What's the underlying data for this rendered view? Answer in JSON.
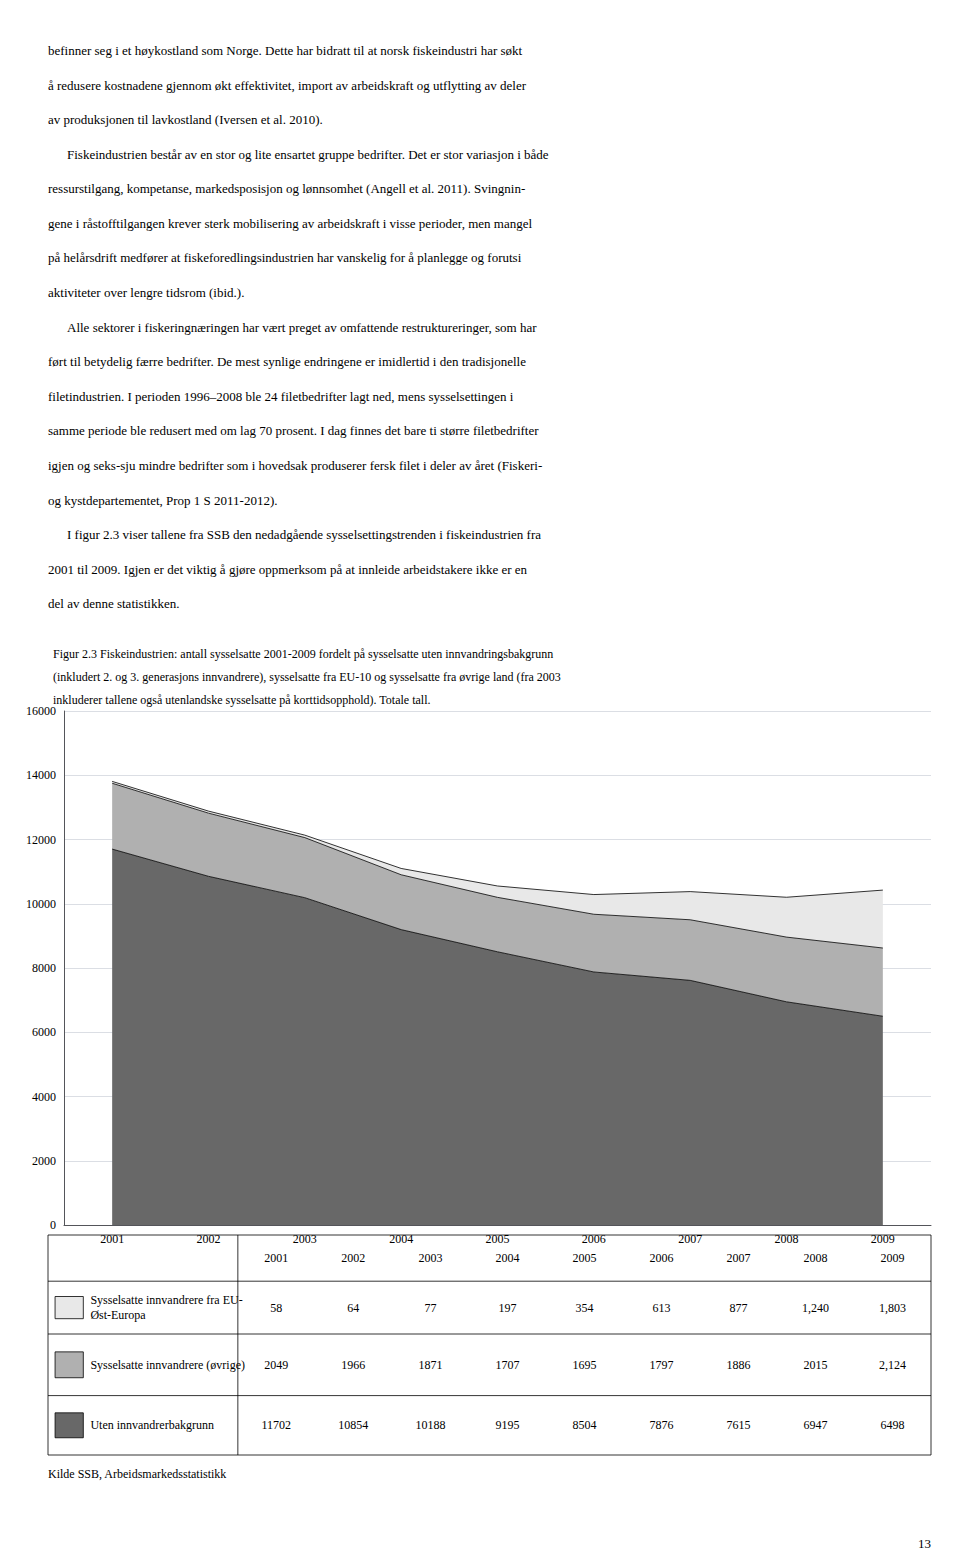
{
  "chart_data": {
    "type": "area",
    "stacked": true,
    "title": "Figur 2.3 Fiskeindustrien: antall sysselsatte 2001-2009 fordelt på sysselsatte uten innvandringsbakgrunn\n(inkludert 2. og 3. generasjons innvandrere), sysselsatte fra EU-10 og sysselsatte fra øvrige land (fra 2003\ninkluderer tallene også utenlandske sysselsatte på korttidsopphold). Totale tall.",
    "categories": [
      "2001",
      "2002",
      "2003",
      "2004",
      "2005",
      "2006",
      "2007",
      "2008",
      "2009"
    ],
    "series": [
      {
        "name": "Uten innvandrerbakgrunn",
        "color": "#686868",
        "values": [
          11702,
          10854,
          10188,
          9195,
          8504,
          7876,
          7615,
          6947,
          6498
        ],
        "value_labels": [
          "11702",
          "10854",
          "10188",
          "9195",
          "8504",
          "7876",
          "7615",
          "6947",
          "6498"
        ]
      },
      {
        "name": "Sysselsatte innvandrere (øvrige)",
        "color": "#b0b0b0",
        "values": [
          2049,
          1966,
          1871,
          1707,
          1695,
          1797,
          1886,
          2015,
          2124
        ],
        "value_labels": [
          "2049",
          "1966",
          "1871",
          "1707",
          "1695",
          "1797",
          "1886",
          "2015",
          "2,124"
        ]
      },
      {
        "name": "Sysselsatte innvandrere fra EU-\nØst-Europa",
        "color": "#e8e8e8",
        "values": [
          58,
          64,
          77,
          197,
          354,
          613,
          877,
          1240,
          1803
        ],
        "value_labels": [
          "58",
          "64",
          "77",
          "197",
          "354",
          "613",
          "877",
          "1,240",
          "1,803"
        ]
      }
    ],
    "ylim": [
      0,
      16000
    ],
    "yticks": [
      0,
      2000,
      4000,
      6000,
      8000,
      10000,
      12000,
      14000,
      16000
    ],
    "grid": true,
    "legend": "bottom"
  },
  "paragraphs": [
    [
      "befinner seg i et høykostland som Norge. Dette har bidratt til at norsk fiskeindustri har søkt",
      "å redusere kostnadene gjennom økt effektivitet, import av arbeidskraft og utflytting av deler",
      "av produksjonen til lavkostland (Iversen et al. 2010)."
    ],
    [
      "Fiskeindustrien består av en stor og lite ensartet gruppe bedrifter. Det er stor variasjon i både",
      "ressurstilgang, kompetanse, markedsposisjon og lønnsomhet (Angell et al. 2011). Svingnin-",
      "gene i råstofftilgangen krever sterk mobilisering av arbeidskraft i visse perioder, men mangel",
      "på helårsdrift medfører at fiskeforedlingsindustrien har vanskelig for å planlegge og forutsi",
      "aktiviteter over lengre tidsrom (ibid.)."
    ],
    [
      "Alle sektorer i fiskeringnæringen har vært preget av omfattende restruktureringer, som har",
      "ført til betydelig færre bedrifter. De mest synlige endringene er imidlertid i den tradisjonelle",
      "filetindustrien. I perioden 1996–2008 ble 24 filetbedrifter lagt ned, mens sysselsettingen i",
      "samme periode ble redusert med om lag 70 prosent. I dag finnes det bare ti større filetbedrifter",
      "igjen og seks-sju mindre bedrifter som i hovedsak produserer fersk filet i deler av året (Fiskeri-",
      "og kystdepartementet, Prop 1 S 2011-2012)."
    ],
    [
      "I figur 2.3 viser tallene fra SSB den nedadgående sysselsettingstrenden i fiskeindustrien fra",
      "2001 til 2009. Igjen er det viktig å gjøre oppmerksom på at innleide arbeidstakere ikke er en",
      "del av denne statistikken."
    ]
  ],
  "source": "Kilde SSB, Arbeidsmarkedsstatistikk",
  "page_number": "13"
}
